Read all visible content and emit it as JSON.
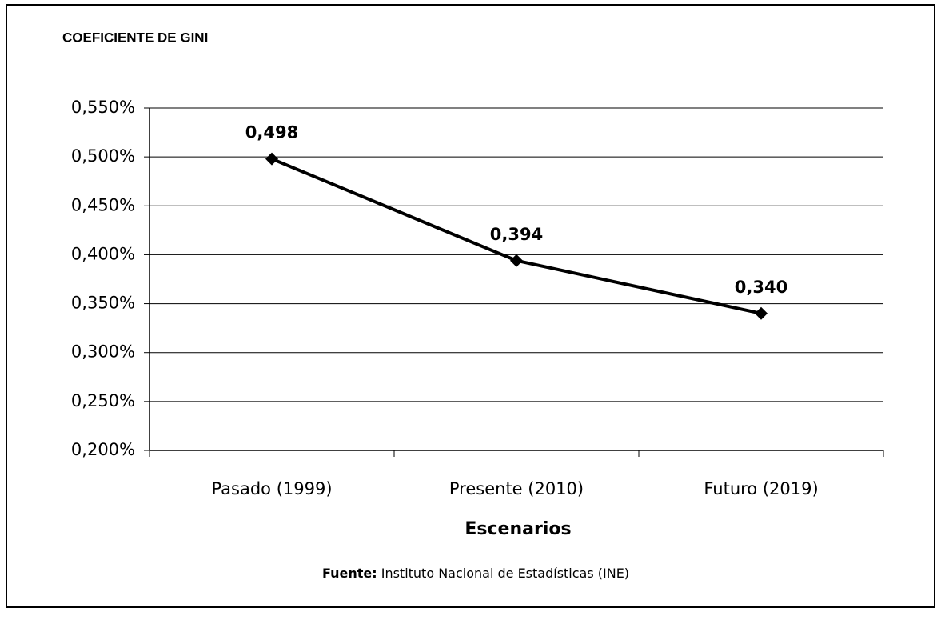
{
  "chart_data": {
    "type": "line",
    "title": "COEFICIENTE DE GINI",
    "x_label": "Escenarios",
    "source_label": "Fuente:",
    "source": "Instituto Nacional de Estadísticas (INE)",
    "categories": [
      "Pasado (1999)",
      "Presente (2010)",
      "Futuro (2019)"
    ],
    "series": [
      {
        "name": "Coeficiente de Gini",
        "color": "#000000",
        "values": [
          0.498,
          0.394,
          0.34
        ],
        "value_labels": [
          "0,498",
          "0,394",
          "0,340"
        ]
      }
    ],
    "ylim": [
      0.2,
      0.55
    ],
    "yticks": [
      {
        "value": 0.2,
        "label": "0,200%"
      },
      {
        "value": 0.25,
        "label": "0,250%"
      },
      {
        "value": 0.3,
        "label": "0,300%"
      },
      {
        "value": 0.35,
        "label": "0,350%"
      },
      {
        "value": 0.4,
        "label": "0,400%"
      },
      {
        "value": 0.45,
        "label": "0,450%"
      },
      {
        "value": 0.5,
        "label": "0,500%"
      },
      {
        "value": 0.55,
        "label": "0,550%"
      }
    ],
    "grid": true
  }
}
